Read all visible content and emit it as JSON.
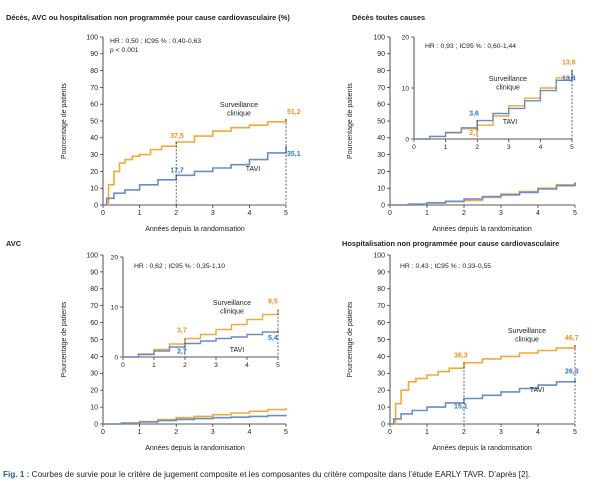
{
  "colors": {
    "orange": "#f2a93b",
    "blue": "#6a8cc7",
    "axis": "#222222",
    "label_orange": "#e8931c",
    "label_blue": "#2f79c2",
    "caption_bold": "#2a5fa5"
  },
  "caption": {
    "prefix": "Fig. 1 :",
    "text": " Courbes de survie pour le critère de jugement composite et les composantes du critère composite dans l’étude EARLY TAVR. D’après [2]."
  },
  "chart_data": [
    {
      "id": "composite",
      "type": "line",
      "title": "Décès, AVC ou hospitalisation non programmée pour cause cardiovasculaire (%)",
      "xlabel": "Années depuis la randomisation",
      "ylabel": "Pourcentage de patients",
      "xlim": [
        0,
        5
      ],
      "ylim": [
        0,
        100
      ],
      "xticks": [
        0,
        1,
        2,
        3,
        4,
        5
      ],
      "yticks": [
        0,
        10,
        20,
        30,
        40,
        50,
        60,
        70,
        80,
        90,
        100
      ],
      "stat_lines": [
        "HR : 0,50 ; IC95 % : 0,40-0,63",
        "p < 0,001"
      ],
      "series": [
        {
          "name": "Surveillance clinique",
          "color": "orange",
          "x": [
            0,
            0.15,
            0.3,
            0.45,
            0.6,
            0.8,
            1.0,
            1.3,
            1.6,
            2.0,
            2.5,
            3.0,
            3.5,
            4.0,
            4.5,
            5.0
          ],
          "y": [
            0,
            12,
            20,
            25,
            27,
            29,
            30,
            33,
            35,
            37.5,
            41,
            44,
            46,
            47.5,
            49.5,
            51.2
          ]
        },
        {
          "name": "TAVI",
          "color": "blue",
          "x": [
            0,
            0.1,
            0.3,
            0.6,
            1.0,
            1.5,
            2.0,
            2.5,
            3.0,
            3.5,
            4.0,
            4.5,
            5.0
          ],
          "y": [
            0,
            4,
            7,
            9,
            12,
            15,
            17.7,
            20,
            22,
            24,
            27,
            31,
            35.1
          ]
        }
      ],
      "annotations": [
        {
          "text": "37,5",
          "x": 2,
          "y": 37.5,
          "color": "orange"
        },
        {
          "text": "17,7",
          "x": 2,
          "y": 17.7,
          "color": "blue"
        },
        {
          "text": "51,2",
          "x": 5,
          "y": 51.2,
          "color": "orange"
        },
        {
          "text": "35,1",
          "x": 5,
          "y": 35.1,
          "color": "blue"
        }
      ],
      "series_labels": [
        {
          "lines": [
            "Surveillance",
            "clinique"
          ],
          "series": 0
        },
        {
          "lines": [
            "TAVI"
          ],
          "series": 1
        }
      ],
      "inset": null
    },
    {
      "id": "deces",
      "type": "line",
      "title": "Décès toutes causes",
      "xlabel": "Années depuis la randomisation",
      "ylabel": "Pourcentage de patients",
      "xlim": [
        0,
        5
      ],
      "ylim": [
        0,
        100
      ],
      "xticks": [
        0,
        1,
        2,
        3,
        4,
        5
      ],
      "yticks": [
        0,
        10,
        20,
        30,
        40,
        50,
        60,
        70,
        80,
        90,
        100
      ],
      "stat_lines": [],
      "series": [
        {
          "name": "Surveillance clinique",
          "color": "orange",
          "x": [
            0,
            0.5,
            1.0,
            1.5,
            2.0,
            2.5,
            3.0,
            3.5,
            4.0,
            4.5,
            5.0
          ],
          "y": [
            0,
            0.5,
            1.2,
            2,
            2.7,
            4.5,
            6.5,
            8,
            10,
            12,
            13.6
          ]
        },
        {
          "name": "TAVI",
          "color": "blue",
          "x": [
            0,
            0.5,
            1.0,
            1.5,
            2.0,
            2.5,
            3.0,
            3.5,
            4.0,
            4.5,
            5.0
          ],
          "y": [
            0,
            0.5,
            1.3,
            2.2,
            3.6,
            5,
            6,
            7.5,
            9.5,
            11.5,
            13.4
          ]
        }
      ],
      "annotations": [],
      "series_labels": [],
      "inset": {
        "xlim": [
          0,
          5
        ],
        "ylim": [
          0,
          20
        ],
        "xticks": [
          0,
          1,
          2,
          3,
          4,
          5
        ],
        "yticks": [
          0,
          10,
          20
        ],
        "stat_lines": [
          "HR : 0,93 ; IC95 % : 0,60-1,44"
        ],
        "annotations": [
          {
            "text": "3,6",
            "x": 2,
            "y": 3.6,
            "color": "blue"
          },
          {
            "text": "2,7",
            "x": 2,
            "y": 2.7,
            "color": "orange"
          },
          {
            "text": "13,6",
            "x": 5,
            "y": 13.6,
            "color": "orange"
          },
          {
            "text": "13,4",
            "x": 5,
            "y": 13.4,
            "color": "blue"
          }
        ],
        "series_labels": [
          {
            "lines": [
              "Surveillance",
              "clinique"
            ],
            "series": 0
          },
          {
            "lines": [
              "TAVI"
            ],
            "series": 1
          }
        ]
      }
    },
    {
      "id": "avc",
      "type": "line",
      "title": "AVC",
      "xlabel": "Années depuis la randomisation",
      "ylabel": "Pourcentage de patients",
      "xlim": [
        0,
        5
      ],
      "ylim": [
        0,
        100
      ],
      "xticks": [
        0,
        1,
        2,
        3,
        4,
        5
      ],
      "yticks": [
        0,
        10,
        20,
        30,
        40,
        50,
        60,
        70,
        80,
        90,
        100
      ],
      "stat_lines": [],
      "series": [
        {
          "name": "Surveillance clinique",
          "color": "orange",
          "x": [
            0,
            0.5,
            1.0,
            1.5,
            2.0,
            2.5,
            3.0,
            3.5,
            4.0,
            4.5,
            5.0
          ],
          "y": [
            0,
            0.6,
            1.5,
            2.6,
            3.7,
            4.5,
            5.5,
            6.5,
            7.5,
            8.5,
            9.5
          ]
        },
        {
          "name": "TAVI",
          "color": "blue",
          "x": [
            0,
            0.5,
            1.0,
            1.5,
            2.0,
            2.5,
            3.0,
            3.5,
            4.0,
            4.5,
            5.0
          ],
          "y": [
            0,
            0.5,
            1.2,
            2.0,
            2.7,
            3.2,
            3.7,
            4.0,
            4.5,
            5.0,
            5.4
          ]
        }
      ],
      "annotations": [],
      "series_labels": [],
      "inset": {
        "xlim": [
          0,
          5
        ],
        "ylim": [
          0,
          20
        ],
        "xticks": [
          0,
          1,
          2,
          3,
          4,
          5
        ],
        "yticks": [
          0,
          10,
          20
        ],
        "stat_lines": [
          "HR : 0,62 ; IC95 % : 0,35-1,10"
        ],
        "annotations": [
          {
            "text": "3,7",
            "x": 2,
            "y": 3.7,
            "color": "orange"
          },
          {
            "text": "2,7",
            "x": 2,
            "y": 2.7,
            "color": "blue"
          },
          {
            "text": "9,5",
            "x": 5,
            "y": 9.5,
            "color": "orange"
          },
          {
            "text": "5,4",
            "x": 5,
            "y": 5.4,
            "color": "blue"
          }
        ],
        "series_labels": [
          {
            "lines": [
              "Surveillance",
              "clinique"
            ],
            "series": 0
          },
          {
            "lines": [
              "TAVI"
            ],
            "series": 1
          }
        ]
      }
    },
    {
      "id": "hospit",
      "type": "line",
      "title": "Hospitalisation non programmée pour cause cardiovasculaire",
      "xlabel": "Années depuis la randomisation",
      "ylabel": "Pourcentage de patients",
      "xlim": [
        0,
        5
      ],
      "ylim": [
        0,
        100
      ],
      "xticks": [
        0,
        1,
        2,
        3,
        4,
        5
      ],
      "yticks": [
        0,
        10,
        20,
        30,
        40,
        50,
        60,
        70,
        80,
        90,
        100
      ],
      "stat_lines": [
        "HR : 0,43 ; IC95 % : 0,33-0,55"
      ],
      "series": [
        {
          "name": "Surveillance clinique",
          "color": "orange",
          "x": [
            0,
            0.15,
            0.3,
            0.5,
            0.7,
            1.0,
            1.3,
            1.6,
            2.0,
            2.5,
            3.0,
            3.5,
            4.0,
            4.5,
            5.0
          ],
          "y": [
            0,
            12,
            20,
            25,
            27,
            29,
            31,
            33,
            36.3,
            38.5,
            40,
            42,
            43.5,
            45,
            46.7
          ]
        },
        {
          "name": "TAVI",
          "color": "blue",
          "x": [
            0,
            0.1,
            0.3,
            0.6,
            1.0,
            1.5,
            2.0,
            2.5,
            3.0,
            3.5,
            4.0,
            4.5,
            5.0
          ],
          "y": [
            0,
            3,
            6,
            8,
            10,
            12.5,
            15.1,
            17,
            19,
            21,
            23,
            25,
            26.3
          ]
        }
      ],
      "annotations": [
        {
          "text": "36,3",
          "x": 2,
          "y": 36.3,
          "color": "orange"
        },
        {
          "text": "15,1",
          "x": 2,
          "y": 15.1,
          "color": "blue"
        },
        {
          "text": "46,7",
          "x": 5,
          "y": 46.7,
          "color": "orange"
        },
        {
          "text": "26,3",
          "x": 5,
          "y": 26.3,
          "color": "blue"
        }
      ],
      "series_labels": [
        {
          "lines": [
            "Surveillance",
            "clinique"
          ],
          "series": 0
        },
        {
          "lines": [
            "TAVI"
          ],
          "series": 1
        }
      ],
      "inset": null
    }
  ]
}
